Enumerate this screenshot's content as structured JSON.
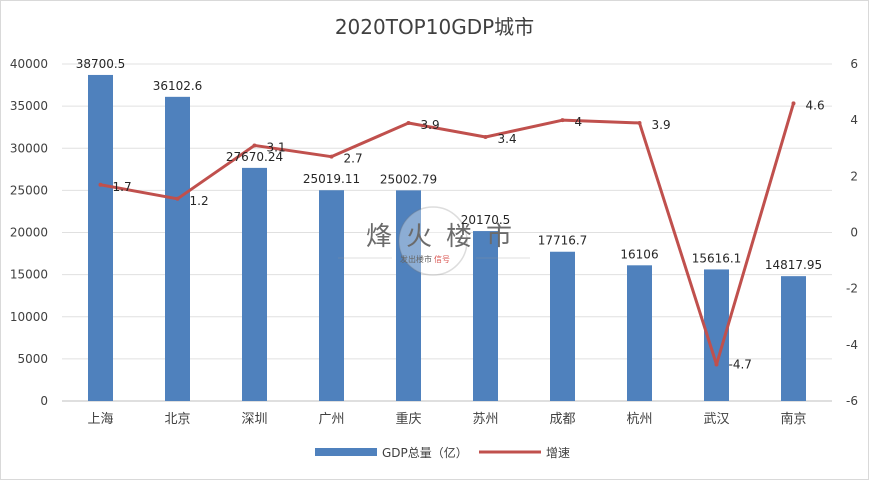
{
  "chart_data": {
    "type": "bar",
    "title": "2020TOP10GDP城市",
    "categories": [
      "上海",
      "北京",
      "深圳",
      "广州",
      "重庆",
      "苏州",
      "成都",
      "杭州",
      "武汉",
      "南京"
    ],
    "series": [
      {
        "name": "GDP总量（亿）",
        "type": "bar",
        "axis": "left",
        "color": "#4f81bd",
        "values": [
          38700.5,
          36102.6,
          27670.24,
          25019.11,
          25002.79,
          20170.5,
          17716.7,
          16106,
          15616.1,
          14817.95
        ],
        "labels": [
          "38700.5",
          "36102.6",
          "27670.24",
          "25019.11",
          "25002.79",
          "20170.5",
          "17716.7",
          "16106",
          "15616.1",
          "14817.95"
        ]
      },
      {
        "name": "增速",
        "type": "line",
        "axis": "right",
        "color": "#c0504d",
        "values": [
          1.7,
          1.2,
          3.1,
          2.7,
          3.9,
          3.4,
          4,
          3.9,
          -4.7,
          4.6
        ],
        "labels": [
          "1.7",
          "1.2",
          "3.1",
          "2.7",
          "3.9",
          "3.4",
          "4",
          "3.9",
          "-4.7",
          "4.6"
        ]
      }
    ],
    "y_left": {
      "min": 0,
      "max": 40000,
      "ticks": [
        "0",
        "5000",
        "10000",
        "15000",
        "20000",
        "25000",
        "30000",
        "35000",
        "40000"
      ]
    },
    "y_right": {
      "min": -6,
      "max": 6,
      "ticks": [
        "-6",
        "-4",
        "-2",
        "0",
        "2",
        "4",
        "6"
      ]
    },
    "grid": true,
    "legend_position": "bottom"
  },
  "watermark": {
    "title": "烽火楼市",
    "subtitle_left": "发出楼市",
    "subtitle_right": "信号"
  }
}
